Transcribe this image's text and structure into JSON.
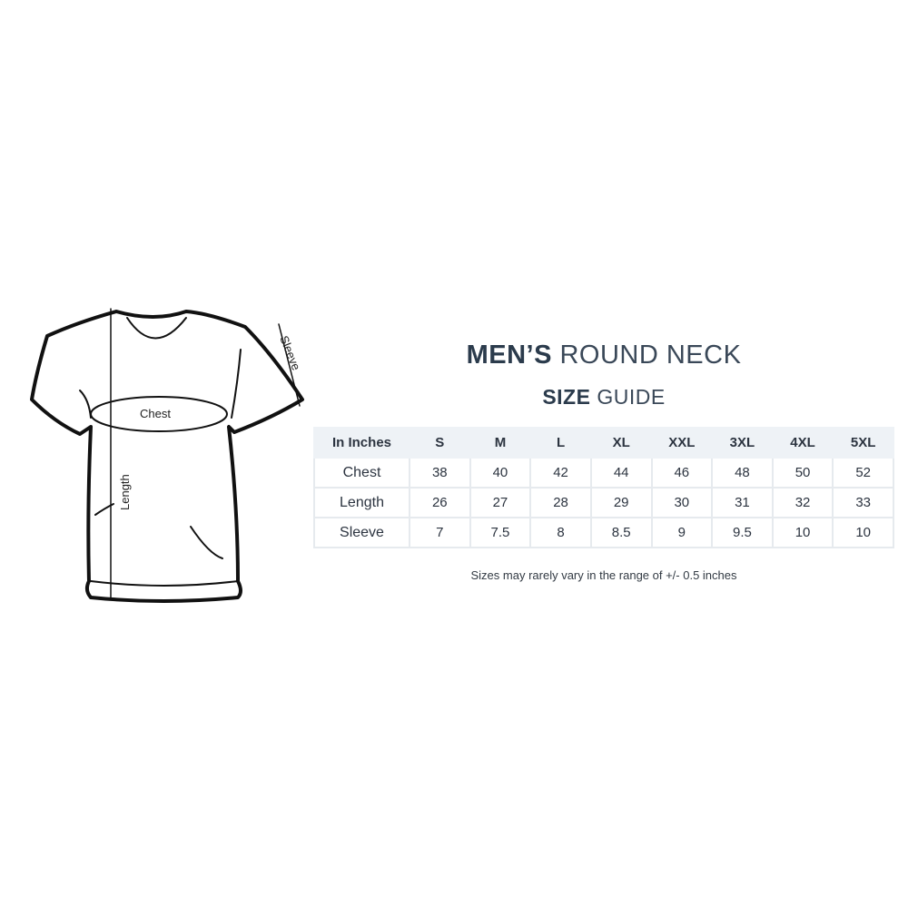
{
  "title": {
    "bold": "MEN’S",
    "light": "ROUND NECK"
  },
  "subtitle": {
    "bold": "SIZE",
    "light": "GUIDE"
  },
  "diagram": {
    "chest_label": "Chest",
    "length_label": "Length",
    "sleeve_label": "Sleeve"
  },
  "table": {
    "corner": "In Inches",
    "sizes": [
      "S",
      "M",
      "L",
      "XL",
      "XXL",
      "3XL",
      "4XL",
      "5XL"
    ],
    "rows": [
      {
        "label": "Chest",
        "values": [
          "38",
          "40",
          "42",
          "44",
          "46",
          "48",
          "50",
          "52"
        ]
      },
      {
        "label": "Length",
        "values": [
          "26",
          "27",
          "28",
          "29",
          "30",
          "31",
          "32",
          "33"
        ]
      },
      {
        "label": "Sleeve",
        "values": [
          "7",
          "7.5",
          "8",
          "8.5",
          "9",
          "9.5",
          "10",
          "10"
        ]
      }
    ]
  },
  "note": "Sizes may rarely vary in the range of +/- 0.5 inches",
  "colors": {
    "title": "#2b3b4c",
    "header_bg": "#eef2f6",
    "border": "#e6eaee"
  }
}
